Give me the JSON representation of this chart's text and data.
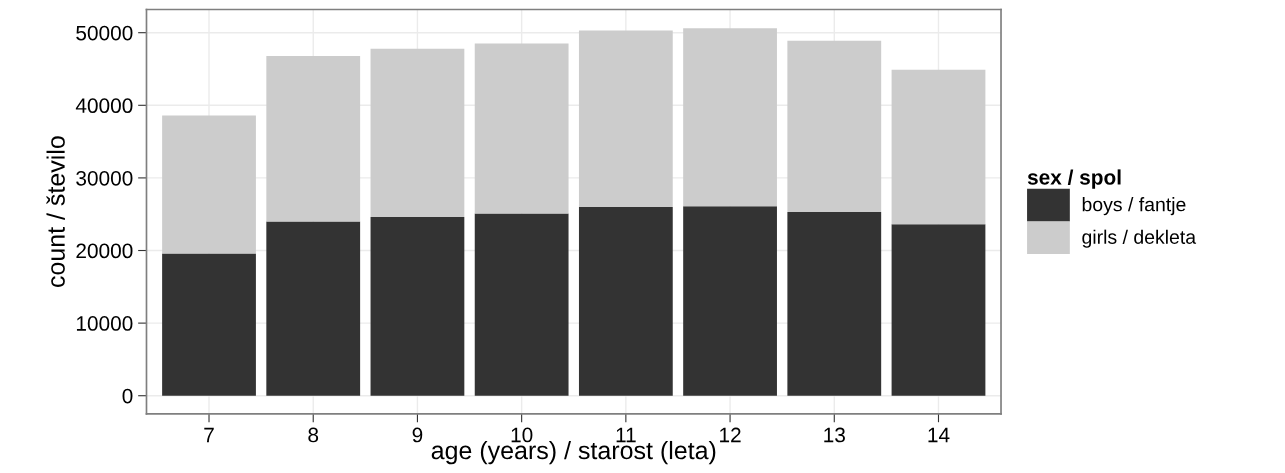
{
  "chart_data": {
    "type": "bar",
    "stacked": true,
    "xlabel": "age (years) / starost (leta)",
    "ylabel": "count / število",
    "legend_title": "sex / spol",
    "legend": "right",
    "grid": true,
    "categories": [
      "7",
      "8",
      "9",
      "10",
      "11",
      "12",
      "13",
      "14"
    ],
    "series": [
      {
        "name": "boys / fantje",
        "color": "#333333",
        "values": [
          19600,
          24000,
          24600,
          25100,
          26000,
          26100,
          25300,
          23600
        ]
      },
      {
        "name": "girls / dekleta",
        "color": "#cccccc",
        "values": [
          19000,
          22800,
          23200,
          23400,
          24300,
          24500,
          23600,
          21300
        ]
      }
    ],
    "ylim": [
      -2500,
      53200
    ],
    "yticks": [
      0,
      10000,
      20000,
      30000,
      40000,
      50000
    ]
  }
}
